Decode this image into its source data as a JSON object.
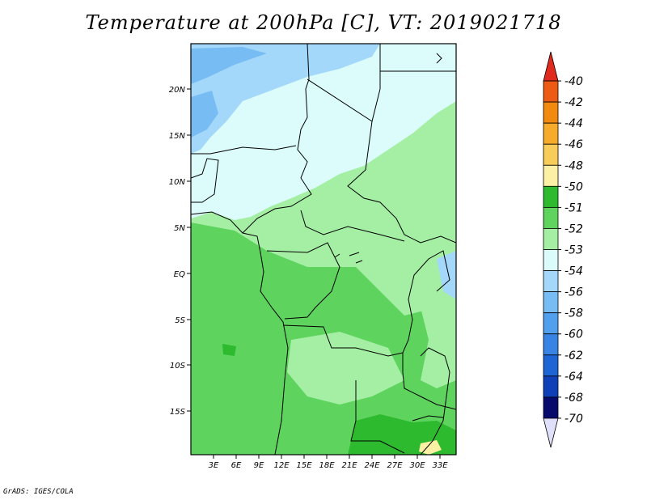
{
  "title": "Temperature at 200hPa [C], VT: 2019021718",
  "footer": "GrADS: IGES/COLA",
  "map": {
    "lat_labels": [
      "20N",
      "15N",
      "10N",
      "5N",
      "EQ",
      "5S",
      "10S",
      "15S"
    ],
    "lon_labels": [
      "3E",
      "6E",
      "9E",
      "12E",
      "15E",
      "18E",
      "21E",
      "24E",
      "27E",
      "30E",
      "33E"
    ]
  },
  "colorbar": {
    "labels": [
      "-40",
      "-42",
      "-44",
      "-46",
      "-48",
      "-50",
      "-51",
      "-52",
      "-53",
      "-54",
      "-56",
      "-58",
      "-60",
      "-62",
      "-64",
      "-68",
      "-70"
    ],
    "colors": [
      "#e02a1e",
      "#ec5a14",
      "#f28a10",
      "#f6ac2a",
      "#f8cc58",
      "#fcf0a4",
      "#2eba2e",
      "#5ed35e",
      "#a4efa4",
      "#dcfcfc",
      "#a4d8fa",
      "#78bcf4",
      "#50a0ee",
      "#3884e4",
      "#1e64d4",
      "#1040b8",
      "#080a6c",
      "#e0e0fa"
    ]
  }
}
